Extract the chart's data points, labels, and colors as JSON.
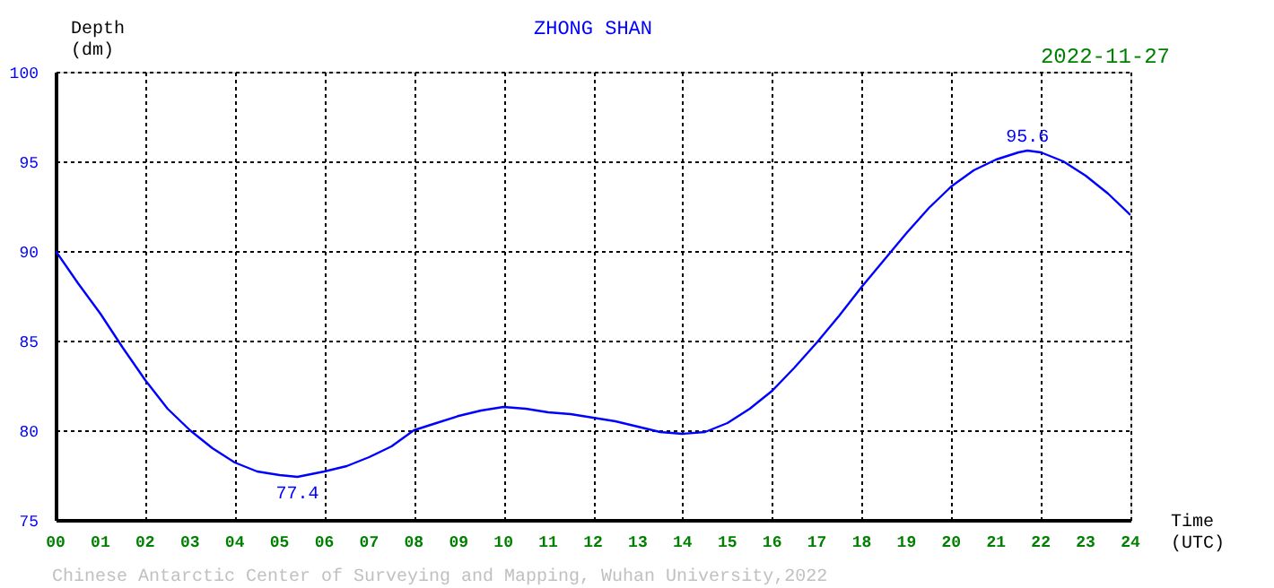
{
  "chart_data": {
    "type": "line",
    "title": "ZHONG SHAN",
    "xlabel": "Time (UTC)",
    "ylabel": "Depth (dm)",
    "x": [
      0,
      0.5,
      1,
      1.5,
      2,
      2.5,
      3,
      3.5,
      4,
      4.5,
      5,
      5.4,
      6,
      6.5,
      7,
      7.5,
      8,
      8.5,
      9,
      9.5,
      10,
      10.5,
      11,
      11.5,
      12,
      12.5,
      13,
      13.5,
      14,
      14.5,
      15,
      15.5,
      16,
      16.5,
      17,
      17.5,
      18,
      18.5,
      19,
      19.5,
      20,
      20.5,
      21,
      21.5,
      21.7,
      22,
      22.5,
      23,
      23.5,
      24
    ],
    "series": [
      {
        "color": "#0000ff",
        "values": [
          90.0,
          88.2,
          86.5,
          84.6,
          82.8,
          81.2,
          80.0,
          79.0,
          78.2,
          77.7,
          77.5,
          77.4,
          77.7,
          78.0,
          78.5,
          79.1,
          80.0,
          80.4,
          80.8,
          81.1,
          81.3,
          81.2,
          81.0,
          80.9,
          80.7,
          80.5,
          80.2,
          79.9,
          79.8,
          79.9,
          80.4,
          81.2,
          82.2,
          83.5,
          84.9,
          86.4,
          88.0,
          89.5,
          91.0,
          92.4,
          93.6,
          94.5,
          95.1,
          95.5,
          95.6,
          95.5,
          95.0,
          94.2,
          93.2,
          92.0
        ]
      }
    ],
    "xlim": [
      0,
      24
    ],
    "ylim": [
      75,
      100
    ],
    "xticks": [
      {
        "value": 0,
        "label": "00"
      },
      {
        "value": 1,
        "label": "01"
      },
      {
        "value": 2,
        "label": "02"
      },
      {
        "value": 3,
        "label": "03"
      },
      {
        "value": 4,
        "label": "04"
      },
      {
        "value": 5,
        "label": "05"
      },
      {
        "value": 6,
        "label": "06"
      },
      {
        "value": 7,
        "label": "07"
      },
      {
        "value": 8,
        "label": "08"
      },
      {
        "value": 9,
        "label": "09"
      },
      10,
      11,
      12,
      13,
      14,
      15,
      16,
      17,
      18,
      19,
      20,
      21,
      22,
      23,
      24
    ],
    "yticks": [
      75,
      80,
      85,
      90,
      95,
      100
    ],
    "grid": true,
    "marker": "none",
    "line_style": "solid",
    "annotations": [
      {
        "text": "77.4",
        "x": 5.4,
        "y": 77.4
      },
      {
        "text": "95.6",
        "x": 21.7,
        "y": 95.6
      },
      "2022-11-27",
      "Chinese Antarctic Center of Surveying and Mapping, Wuhan University,2022"
    ]
  }
}
